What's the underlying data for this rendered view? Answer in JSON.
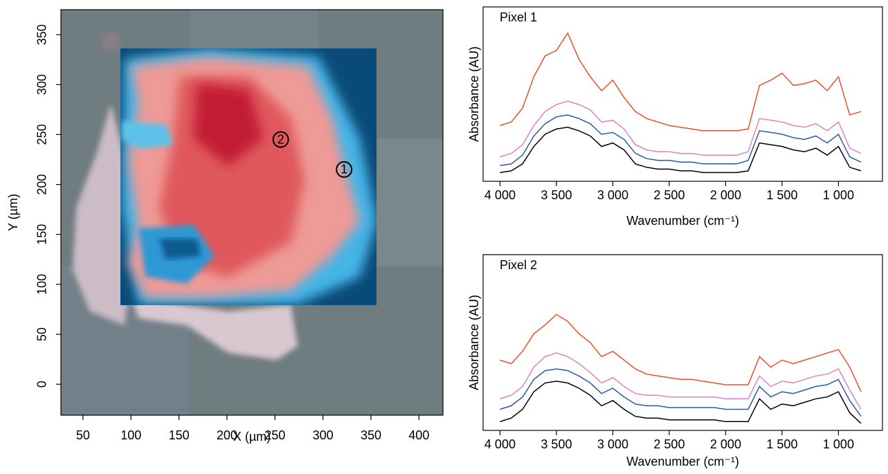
{
  "chart_data": [
    {
      "type": "scatter",
      "xlabel": "X (µm)",
      "ylabel": "Y (µm)",
      "xlim": [
        27,
        425
      ],
      "ylim": [
        -31,
        375
      ],
      "xticks": [
        50,
        100,
        150,
        200,
        250,
        300,
        350,
        400
      ],
      "yticks": [
        0,
        50,
        100,
        150,
        200,
        250,
        300,
        350
      ],
      "x": [
        322,
        256
      ],
      "y": [
        215,
        245
      ],
      "labels": [
        "1",
        "2"
      ]
    },
    {
      "type": "line",
      "title": "Pixel 1",
      "xlabel": "Wavenumber (cm⁻¹)",
      "ylabel": "Absorbance (AU)",
      "xlim": [
        4150,
        610
      ],
      "ylim": [
        0,
        1
      ],
      "xticks": [
        {
          "value": 4000,
          "label": "4 000"
        },
        {
          "value": 3500,
          "label": "3 500"
        },
        {
          "value": 3000,
          "label": "3 000"
        },
        {
          "value": 2500,
          "label": "2 500"
        },
        {
          "value": 2000,
          "label": "2 000"
        },
        {
          "value": 1500,
          "label": "1 500"
        },
        {
          "value": 1000,
          "label": "1 000"
        }
      ],
      "x": [
        4000,
        3900,
        3800,
        3700,
        3600,
        3500,
        3400,
        3300,
        3200,
        3100,
        3000,
        2900,
        2800,
        2700,
        2600,
        2500,
        2400,
        2300,
        2200,
        2100,
        2000,
        1900,
        1800,
        1700,
        1600,
        1500,
        1400,
        1300,
        1200,
        1100,
        1000,
        900,
        800
      ],
      "series": [
        {
          "color": "#e8502a",
          "values": [
            0.32,
            0.34,
            0.42,
            0.6,
            0.72,
            0.75,
            0.85,
            0.7,
            0.6,
            0.52,
            0.58,
            0.48,
            0.4,
            0.36,
            0.34,
            0.32,
            0.31,
            0.3,
            0.29,
            0.29,
            0.29,
            0.29,
            0.3,
            0.55,
            0.58,
            0.62,
            0.55,
            0.56,
            0.58,
            0.52,
            0.6,
            0.38,
            0.4
          ]
        },
        {
          "color": "#d884c0",
          "values": [
            0.14,
            0.16,
            0.21,
            0.32,
            0.4,
            0.44,
            0.46,
            0.44,
            0.41,
            0.34,
            0.35,
            0.3,
            0.21,
            0.18,
            0.17,
            0.17,
            0.16,
            0.16,
            0.15,
            0.15,
            0.15,
            0.15,
            0.17,
            0.36,
            0.35,
            0.34,
            0.32,
            0.31,
            0.33,
            0.29,
            0.34,
            0.19,
            0.16
          ]
        },
        {
          "color": "#2a5aa8",
          "values": [
            0.09,
            0.1,
            0.15,
            0.26,
            0.33,
            0.37,
            0.38,
            0.36,
            0.33,
            0.27,
            0.28,
            0.24,
            0.16,
            0.13,
            0.12,
            0.12,
            0.11,
            0.11,
            0.1,
            0.1,
            0.1,
            0.1,
            0.12,
            0.29,
            0.28,
            0.27,
            0.25,
            0.24,
            0.26,
            0.22,
            0.27,
            0.14,
            0.11
          ]
        },
        {
          "color": "#000000",
          "values": [
            0.05,
            0.06,
            0.1,
            0.2,
            0.27,
            0.3,
            0.31,
            0.29,
            0.26,
            0.2,
            0.22,
            0.18,
            0.1,
            0.08,
            0.07,
            0.07,
            0.06,
            0.06,
            0.05,
            0.05,
            0.05,
            0.05,
            0.06,
            0.22,
            0.21,
            0.2,
            0.18,
            0.17,
            0.19,
            0.15,
            0.2,
            0.08,
            0.06
          ]
        }
      ]
    },
    {
      "type": "line",
      "title": "Pixel 2",
      "xlabel": "Wavenumber (cm⁻¹)",
      "ylabel": "Absorbance (AU)",
      "xlim": [
        4150,
        610
      ],
      "ylim": [
        0,
        1
      ],
      "xticks": [
        {
          "value": 4000,
          "label": "4 000"
        },
        {
          "value": 3500,
          "label": "3 500"
        },
        {
          "value": 3000,
          "label": "3 000"
        },
        {
          "value": 2500,
          "label": "2 500"
        },
        {
          "value": 2000,
          "label": "2 000"
        },
        {
          "value": 1500,
          "label": "1 500"
        },
        {
          "value": 1000,
          "label": "1 000"
        }
      ],
      "x": [
        4000,
        3900,
        3800,
        3700,
        3600,
        3500,
        3400,
        3300,
        3200,
        3100,
        3000,
        2900,
        2800,
        2700,
        2600,
        2500,
        2400,
        2300,
        2200,
        2100,
        2000,
        1900,
        1800,
        1700,
        1600,
        1500,
        1400,
        1300,
        1200,
        1100,
        1000,
        900,
        800
      ],
      "series": [
        {
          "color": "#e8502a",
          "values": [
            0.4,
            0.38,
            0.45,
            0.55,
            0.6,
            0.66,
            0.62,
            0.55,
            0.5,
            0.42,
            0.45,
            0.4,
            0.35,
            0.32,
            0.31,
            0.3,
            0.29,
            0.29,
            0.28,
            0.27,
            0.26,
            0.26,
            0.26,
            0.42,
            0.36,
            0.4,
            0.38,
            0.4,
            0.42,
            0.44,
            0.46,
            0.36,
            0.22
          ]
        },
        {
          "color": "#d884c0",
          "values": [
            0.18,
            0.2,
            0.25,
            0.36,
            0.42,
            0.44,
            0.42,
            0.38,
            0.33,
            0.27,
            0.3,
            0.25,
            0.21,
            0.2,
            0.2,
            0.19,
            0.19,
            0.19,
            0.19,
            0.19,
            0.18,
            0.18,
            0.18,
            0.31,
            0.25,
            0.28,
            0.27,
            0.29,
            0.31,
            0.32,
            0.35,
            0.23,
            0.12
          ]
        },
        {
          "color": "#2a5aa8",
          "values": [
            0.12,
            0.14,
            0.19,
            0.29,
            0.34,
            0.35,
            0.34,
            0.31,
            0.27,
            0.21,
            0.24,
            0.19,
            0.15,
            0.14,
            0.14,
            0.13,
            0.13,
            0.13,
            0.13,
            0.13,
            0.12,
            0.12,
            0.12,
            0.25,
            0.19,
            0.22,
            0.21,
            0.23,
            0.25,
            0.26,
            0.29,
            0.17,
            0.08
          ]
        },
        {
          "color": "#000000",
          "values": [
            0.05,
            0.07,
            0.12,
            0.22,
            0.27,
            0.28,
            0.27,
            0.24,
            0.2,
            0.14,
            0.17,
            0.12,
            0.08,
            0.07,
            0.07,
            0.06,
            0.06,
            0.06,
            0.06,
            0.06,
            0.05,
            0.05,
            0.05,
            0.18,
            0.12,
            0.15,
            0.14,
            0.16,
            0.18,
            0.19,
            0.22,
            0.1,
            0.04
          ]
        }
      ]
    }
  ]
}
